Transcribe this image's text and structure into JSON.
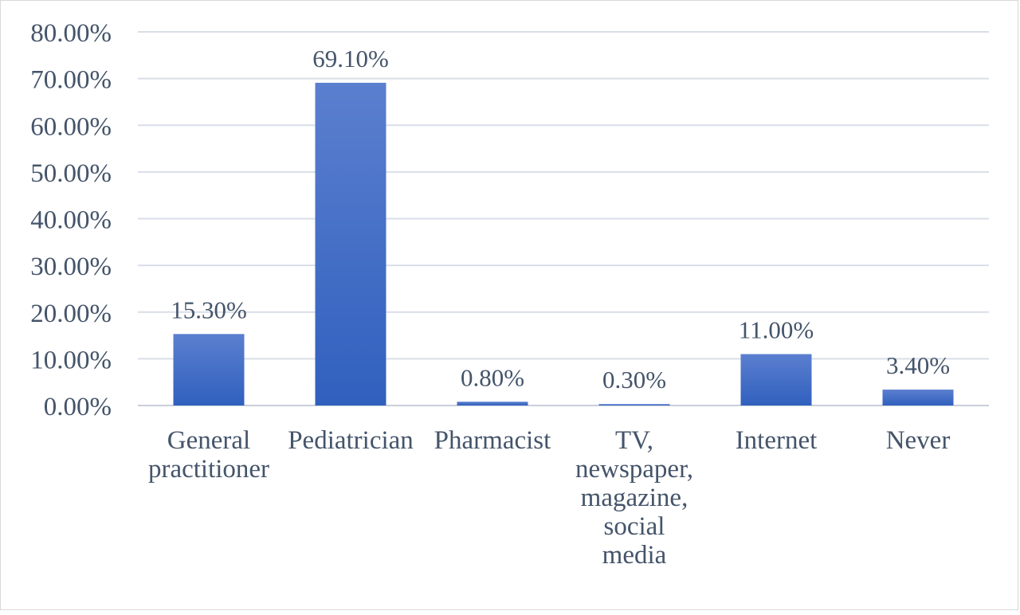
{
  "chart_data": {
    "type": "bar",
    "categories": [
      [
        "General",
        "practitioner"
      ],
      [
        "Pediatrician"
      ],
      [
        "Pharmacist"
      ],
      [
        "TV,",
        "newspaper,",
        "magazine,",
        "social",
        "media"
      ],
      [
        "Internet"
      ],
      [
        "Never"
      ]
    ],
    "values": [
      15.3,
      69.1,
      0.8,
      0.3,
      11.0,
      3.4
    ],
    "data_labels": [
      "15.30%",
      "69.10%",
      "0.80%",
      "0.30%",
      "11.00%",
      "3.40%"
    ],
    "y_ticks": [
      "0.00%",
      "10.00%",
      "20.00%",
      "30.00%",
      "40.00%",
      "50.00%",
      "60.00%",
      "70.00%",
      "80.00%"
    ],
    "ylim": [
      0,
      80
    ],
    "grid": true,
    "colors": {
      "bar_top": "#5b7fcf",
      "bar_bottom": "#3060be",
      "grid": "#d9dfe8",
      "text": "#44546a"
    }
  }
}
